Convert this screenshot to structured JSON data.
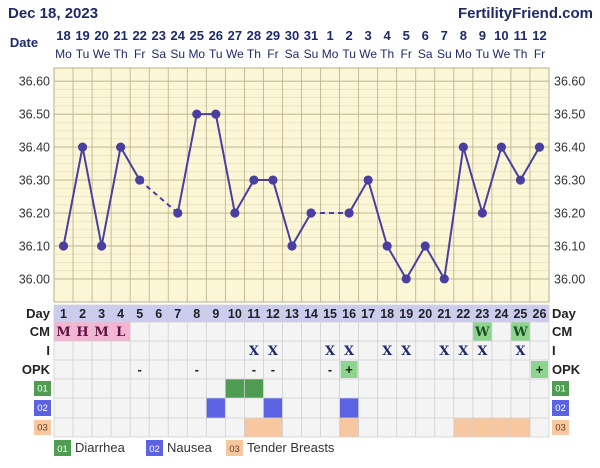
{
  "header": {
    "date": "Dec 18, 2023",
    "brand": "FertilityFriend.com"
  },
  "labels": {
    "date_row": "Date",
    "day_row": "Day",
    "cm_row": "CM",
    "i_row": "I",
    "opk_row": "OPK"
  },
  "dates": [
    "18",
    "19",
    "20",
    "21",
    "22",
    "23",
    "24",
    "25",
    "26",
    "27",
    "28",
    "29",
    "30",
    "31",
    "1",
    "2",
    "3",
    "4",
    "5",
    "6",
    "7",
    "8",
    "9",
    "10",
    "11",
    "12"
  ],
  "weekdays": [
    "Mo",
    "Tu",
    "We",
    "Th",
    "Fr",
    "Sa",
    "Su",
    "Mo",
    "Tu",
    "We",
    "Th",
    "Fr",
    "Sa",
    "Su",
    "Mo",
    "Tu",
    "We",
    "Th",
    "Fr",
    "Sa",
    "Su",
    "Mo",
    "Tu",
    "We",
    "Th",
    "Fr"
  ],
  "cycle_days": [
    "1",
    "2",
    "3",
    "4",
    "5",
    "6",
    "7",
    "8",
    "9",
    "10",
    "11",
    "12",
    "13",
    "14",
    "15",
    "16",
    "17",
    "18",
    "19",
    "20",
    "21",
    "22",
    "23",
    "24",
    "25",
    "26"
  ],
  "cm": [
    "M",
    "H",
    "M",
    "L",
    "",
    "",
    "",
    "",
    "",
    "",
    "",
    "",
    "",
    "",
    "",
    "",
    "",
    "",
    "",
    "",
    "",
    "",
    "W",
    "",
    "W",
    ""
  ],
  "intercourse": [
    "",
    "",
    "",
    "",
    "",
    "",
    "",
    "",
    "",
    "",
    "X",
    "X",
    "",
    "",
    "X",
    "X",
    "",
    "X",
    "X",
    "",
    "X",
    "X",
    "X",
    "",
    "X",
    ""
  ],
  "opk": [
    "",
    "",
    "",
    "",
    "-",
    "",
    "",
    "-",
    "",
    "",
    "-",
    "-",
    "",
    "",
    "-",
    "+",
    "",
    "",
    "",
    "",
    "",
    "",
    "",
    "",
    "",
    "+"
  ],
  "symptoms": [
    {
      "code": "01",
      "name": "Diarrhea",
      "color": "#4f9d52",
      "days": [
        10,
        11
      ]
    },
    {
      "code": "02",
      "name": "Nausea",
      "color": "#5b63e3",
      "days": [
        9,
        12,
        16
      ]
    },
    {
      "code": "03",
      "name": "Tender Breasts",
      "color": "#f7c7a0",
      "days": [
        11,
        12,
        16,
        22,
        23,
        24,
        25
      ]
    }
  ],
  "colors": {
    "line": "#4a3fa0",
    "point": "#4a3fa0",
    "chart_bg": "#fbf6d6",
    "grid_major": "#b8b08a",
    "grid_minor": "#e3dcb8",
    "cm_highlight": "#f4b4d2",
    "cm_w": "#8dd48f",
    "opk_positive": "#8dd48f",
    "day_header_bg": "#ccccf0",
    "header_text": "#1e2a6a"
  },
  "chart_data": {
    "type": "line",
    "x": [
      1,
      2,
      3,
      4,
      5,
      6,
      7,
      8,
      9,
      10,
      11,
      12,
      13,
      14,
      15,
      16,
      17,
      18,
      19,
      20,
      21,
      22,
      23,
      24,
      25,
      26
    ],
    "series": [
      {
        "values": [
          36.1,
          36.4,
          36.1,
          36.4,
          36.3,
          null,
          36.2,
          36.5,
          36.5,
          36.2,
          36.3,
          36.3,
          36.1,
          36.2,
          null,
          36.2,
          36.3,
          36.1,
          36.0,
          36.1,
          36.0,
          36.4,
          36.2,
          36.4,
          36.3,
          36.4
        ]
      }
    ],
    "dashed_segments": [
      [
        5,
        7
      ],
      [
        14,
        16
      ]
    ],
    "y_ticks": [
      "36.60",
      "36.50",
      "36.40",
      "36.30",
      "36.20",
      "36.10",
      "36.00"
    ],
    "ylim": [
      35.93,
      36.64
    ]
  }
}
